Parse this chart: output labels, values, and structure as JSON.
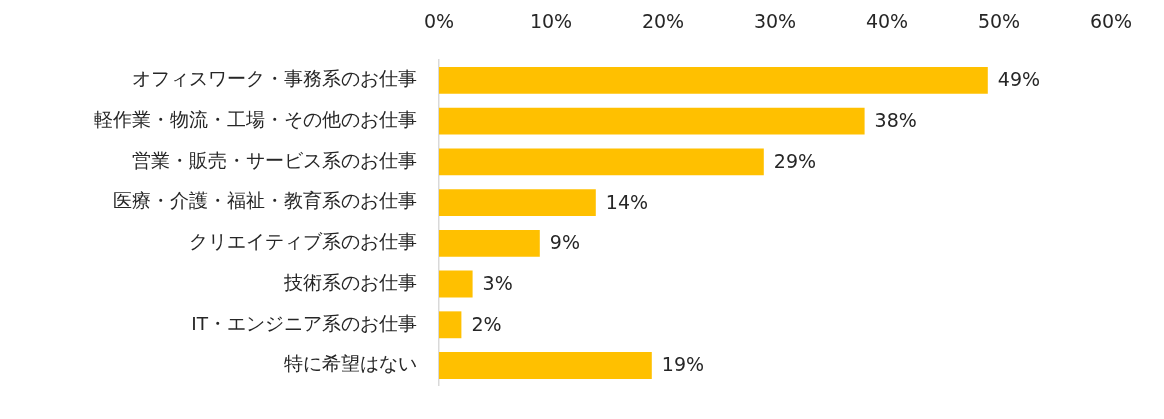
{
  "chart_data": {
    "type": "bar",
    "orientation": "horizontal",
    "categories": [
      "オフィスワーク・事務系のお仕事",
      "軽作業・物流・工場・その他のお仕事",
      "営業・販売・サービス系のお仕事",
      "医療・介護・福祉・教育系のお仕事",
      "クリエイティブ系のお仕事",
      "技術系のお仕事",
      "IT・エンジニア系のお仕事",
      "特に希望はない"
    ],
    "values": [
      49,
      38,
      29,
      14,
      9,
      3,
      2,
      19
    ],
    "value_labels": [
      "49%",
      "38%",
      "29%",
      "14%",
      "9%",
      "3%",
      "2%",
      "19%"
    ],
    "color": "#ffc000",
    "xlim": [
      0,
      60
    ],
    "xticks": [
      {
        "value": 0,
        "label": "0%"
      },
      {
        "value": 10,
        "label": "10%"
      },
      {
        "value": 20,
        "label": "20%"
      },
      {
        "value": 30,
        "label": "30%"
      },
      {
        "value": 40,
        "label": "40%"
      },
      {
        "value": 50,
        "label": "50%"
      },
      {
        "value": 60,
        "label": "60%"
      }
    ]
  }
}
